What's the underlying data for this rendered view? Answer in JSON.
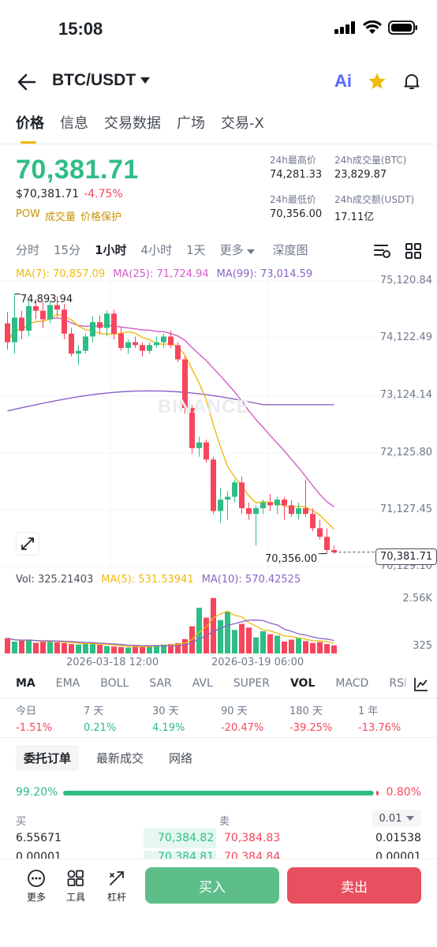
{
  "status": {
    "time": "15:08"
  },
  "header": {
    "pair": "BTC/USDT",
    "ai_label": "Ai"
  },
  "tabs": [
    "价格",
    "信息",
    "交易数据",
    "广场",
    "交易-X"
  ],
  "price": {
    "last": "70,381.71",
    "usd": "$70,381.71",
    "change": "-4.75%",
    "tags": [
      "POW",
      "成交量",
      "价格保护"
    ]
  },
  "stats": {
    "high_label": "24h最高价",
    "high": "74,281.33",
    "vol_btc_label": "24h成交量(BTC)",
    "vol_btc": "23,829.87",
    "low_label": "24h最低价",
    "low": "70,356.00",
    "vol_usdt_label": "24h成交额(USDT)",
    "vol_usdt": "17.11亿"
  },
  "intervals": [
    "分时",
    "15分",
    "1小时",
    "4小时",
    "1天",
    "更多",
    "深度图"
  ],
  "chart_ma": {
    "ma7": "MA(7): 70,857.09",
    "ma25": "MA(25): 71,724.94",
    "ma99": "MA(99): 73,014.59"
  },
  "chart_data": {
    "type": "candlestick",
    "yaxis_ticks": [
      "75,120.84",
      "74,122.49",
      "73,124.14",
      "72,125.80",
      "71,127.45",
      "70,129.10"
    ],
    "ylim": [
      70129.1,
      75120.84
    ],
    "high_marker": "74,893.94",
    "low_marker": "70,356.00",
    "last_price_tag": "70,381.71",
    "x_labels": [
      "2026-03-18 12:00",
      "2026-03-19 06:00"
    ],
    "watermark": "BINANCE",
    "candles": [
      [
        74380,
        74580,
        73920,
        74050
      ],
      [
        74050,
        74893,
        73850,
        74480
      ],
      [
        74480,
        74600,
        74100,
        74250
      ],
      [
        74250,
        74780,
        74150,
        74680
      ],
      [
        74680,
        74800,
        74450,
        74600
      ],
      [
        74600,
        74760,
        74300,
        74450
      ],
      [
        74450,
        74780,
        74380,
        74700
      ],
      [
        74700,
        74850,
        74500,
        74620
      ],
      [
        74620,
        74720,
        74100,
        74200
      ],
      [
        74200,
        74300,
        73800,
        73850
      ],
      [
        73850,
        74000,
        73650,
        73900
      ],
      [
        73900,
        74200,
        73850,
        74150
      ],
      [
        74150,
        74500,
        74050,
        74400
      ],
      [
        74400,
        74520,
        74200,
        74300
      ],
      [
        74300,
        74600,
        74150,
        74550
      ],
      [
        74550,
        74620,
        74100,
        74200
      ],
      [
        74200,
        74300,
        73900,
        73950
      ],
      [
        73950,
        74100,
        73850,
        74050
      ],
      [
        74050,
        74150,
        73950,
        74000
      ],
      [
        74000,
        74050,
        73800,
        73900
      ],
      [
        73900,
        74050,
        73850,
        74000
      ],
      [
        74000,
        74150,
        73950,
        74050
      ],
      [
        74050,
        74200,
        73950,
        74150
      ],
      [
        74150,
        74250,
        73950,
        74000
      ],
      [
        74000,
        74050,
        73700,
        73750
      ],
      [
        73750,
        73800,
        72800,
        72900
      ],
      [
        72900,
        72950,
        72100,
        72200
      ],
      [
        72200,
        72400,
        72050,
        72300
      ],
      [
        72300,
        72350,
        71950,
        72000
      ],
      [
        72000,
        72050,
        71050,
        71100
      ],
      [
        71100,
        71500,
        70900,
        71300
      ],
      [
        71300,
        71450,
        70950,
        71350
      ],
      [
        71350,
        71650,
        71250,
        71600
      ],
      [
        71600,
        71700,
        71050,
        71150
      ],
      [
        71150,
        71250,
        70950,
        71050
      ],
      [
        71050,
        71200,
        70500,
        71150
      ],
      [
        71150,
        71300,
        71050,
        71250
      ],
      [
        71250,
        71400,
        71100,
        71200
      ],
      [
        71200,
        71350,
        71050,
        71300
      ],
      [
        71300,
        71350,
        70950,
        71200
      ],
      [
        71200,
        71300,
        71000,
        71050
      ],
      [
        71050,
        71250,
        70950,
        71150
      ],
      [
        71150,
        71650,
        71000,
        71050
      ],
      [
        71050,
        71150,
        70750,
        70800
      ],
      [
        70800,
        70950,
        70600,
        70650
      ],
      [
        70650,
        70800,
        70356,
        70420
      ],
      [
        70420,
        70500,
        70356,
        70381
      ]
    ],
    "volume": {
      "label": "Vol: 325.21403",
      "ma5": "MA(5): 531.53941",
      "ma10": "MA(10): 570.42525",
      "ticks": [
        "2.56K",
        "325"
      ],
      "ylim": [
        0,
        2560
      ],
      "values": [
        620,
        480,
        520,
        560,
        430,
        470,
        500,
        450,
        420,
        380,
        360,
        390,
        420,
        350,
        300,
        280,
        260,
        240,
        300,
        280,
        320,
        340,
        360,
        380,
        420,
        580,
        1100,
        1850,
        1450,
        2250,
        1350,
        1700,
        950,
        1200,
        1050,
        650,
        900,
        780,
        720,
        480,
        560,
        620,
        500,
        420,
        460,
        380,
        325
      ]
    }
  },
  "indicators": [
    "MA",
    "EMA",
    "BOLL",
    "SAR",
    "AVL",
    "SUPER",
    "VOL",
    "MACD",
    "RSI"
  ],
  "performance": [
    {
      "label": "今日",
      "value": "-1.51%"
    },
    {
      "label": "7 天",
      "value": "0.21%"
    },
    {
      "label": "30 天",
      "value": "4.19%"
    },
    {
      "label": "90 天",
      "value": "-20.47%"
    },
    {
      "label": "180 天",
      "value": "-39.25%"
    },
    {
      "label": "1 年",
      "value": "-13.76%"
    }
  ],
  "section_tabs": [
    "委托订单",
    "最新成交",
    "网络"
  ],
  "orderbook": {
    "buy_ratio": "99.20%",
    "sell_ratio": "0.80%",
    "buy_fraction": 0.992,
    "buy_label": "买",
    "sell_label": "卖",
    "precision": "0.01",
    "rows": [
      {
        "bid_qty": "6.55671",
        "bid": "70,384.82",
        "ask": "70,384.83",
        "ask_qty": "0.01538"
      },
      {
        "bid_qty": "0.00001",
        "bid": "70,384.81",
        "ask": "70,384.84",
        "ask_qty": "0.00001"
      }
    ]
  },
  "bottom": {
    "more": "更多",
    "tools": "工具",
    "leverage": "杠杆",
    "buy": "买入",
    "sell": "卖出"
  },
  "colors": {
    "up": "#2ebd85",
    "down": "#f6465d",
    "ma7": "#f0b90b",
    "ma25": "#d05ec5",
    "ma99": "#8a63c8"
  }
}
